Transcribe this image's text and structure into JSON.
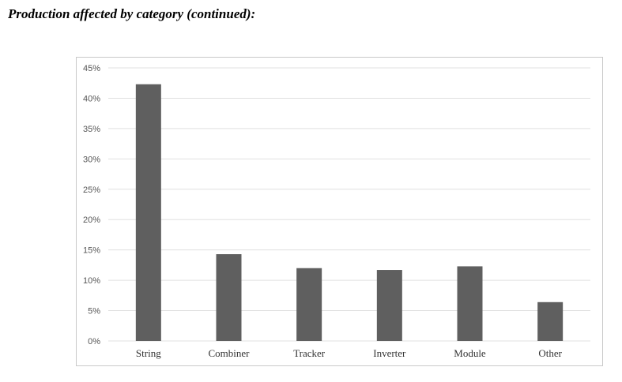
{
  "page": {
    "heading": "Production affected by category (continued):"
  },
  "colors": {
    "bar": "#5f5f5f",
    "grid": "#e0e0e0",
    "frame": "#c9c9c9"
  },
  "chart_data": {
    "type": "bar",
    "title": "",
    "xlabel": "",
    "ylabel": "",
    "categories": [
      "String",
      "Combiner",
      "Tracker",
      "Inverter",
      "Module",
      "Other"
    ],
    "values": [
      42.3,
      14.3,
      12.0,
      11.7,
      12.3,
      6.4
    ],
    "ylim": [
      0,
      45
    ],
    "ytick_labels": [
      "0%",
      "5%",
      "10%",
      "15%",
      "20%",
      "25%",
      "30%",
      "35%",
      "40%",
      "45%"
    ],
    "grid": true,
    "legend": "none"
  }
}
